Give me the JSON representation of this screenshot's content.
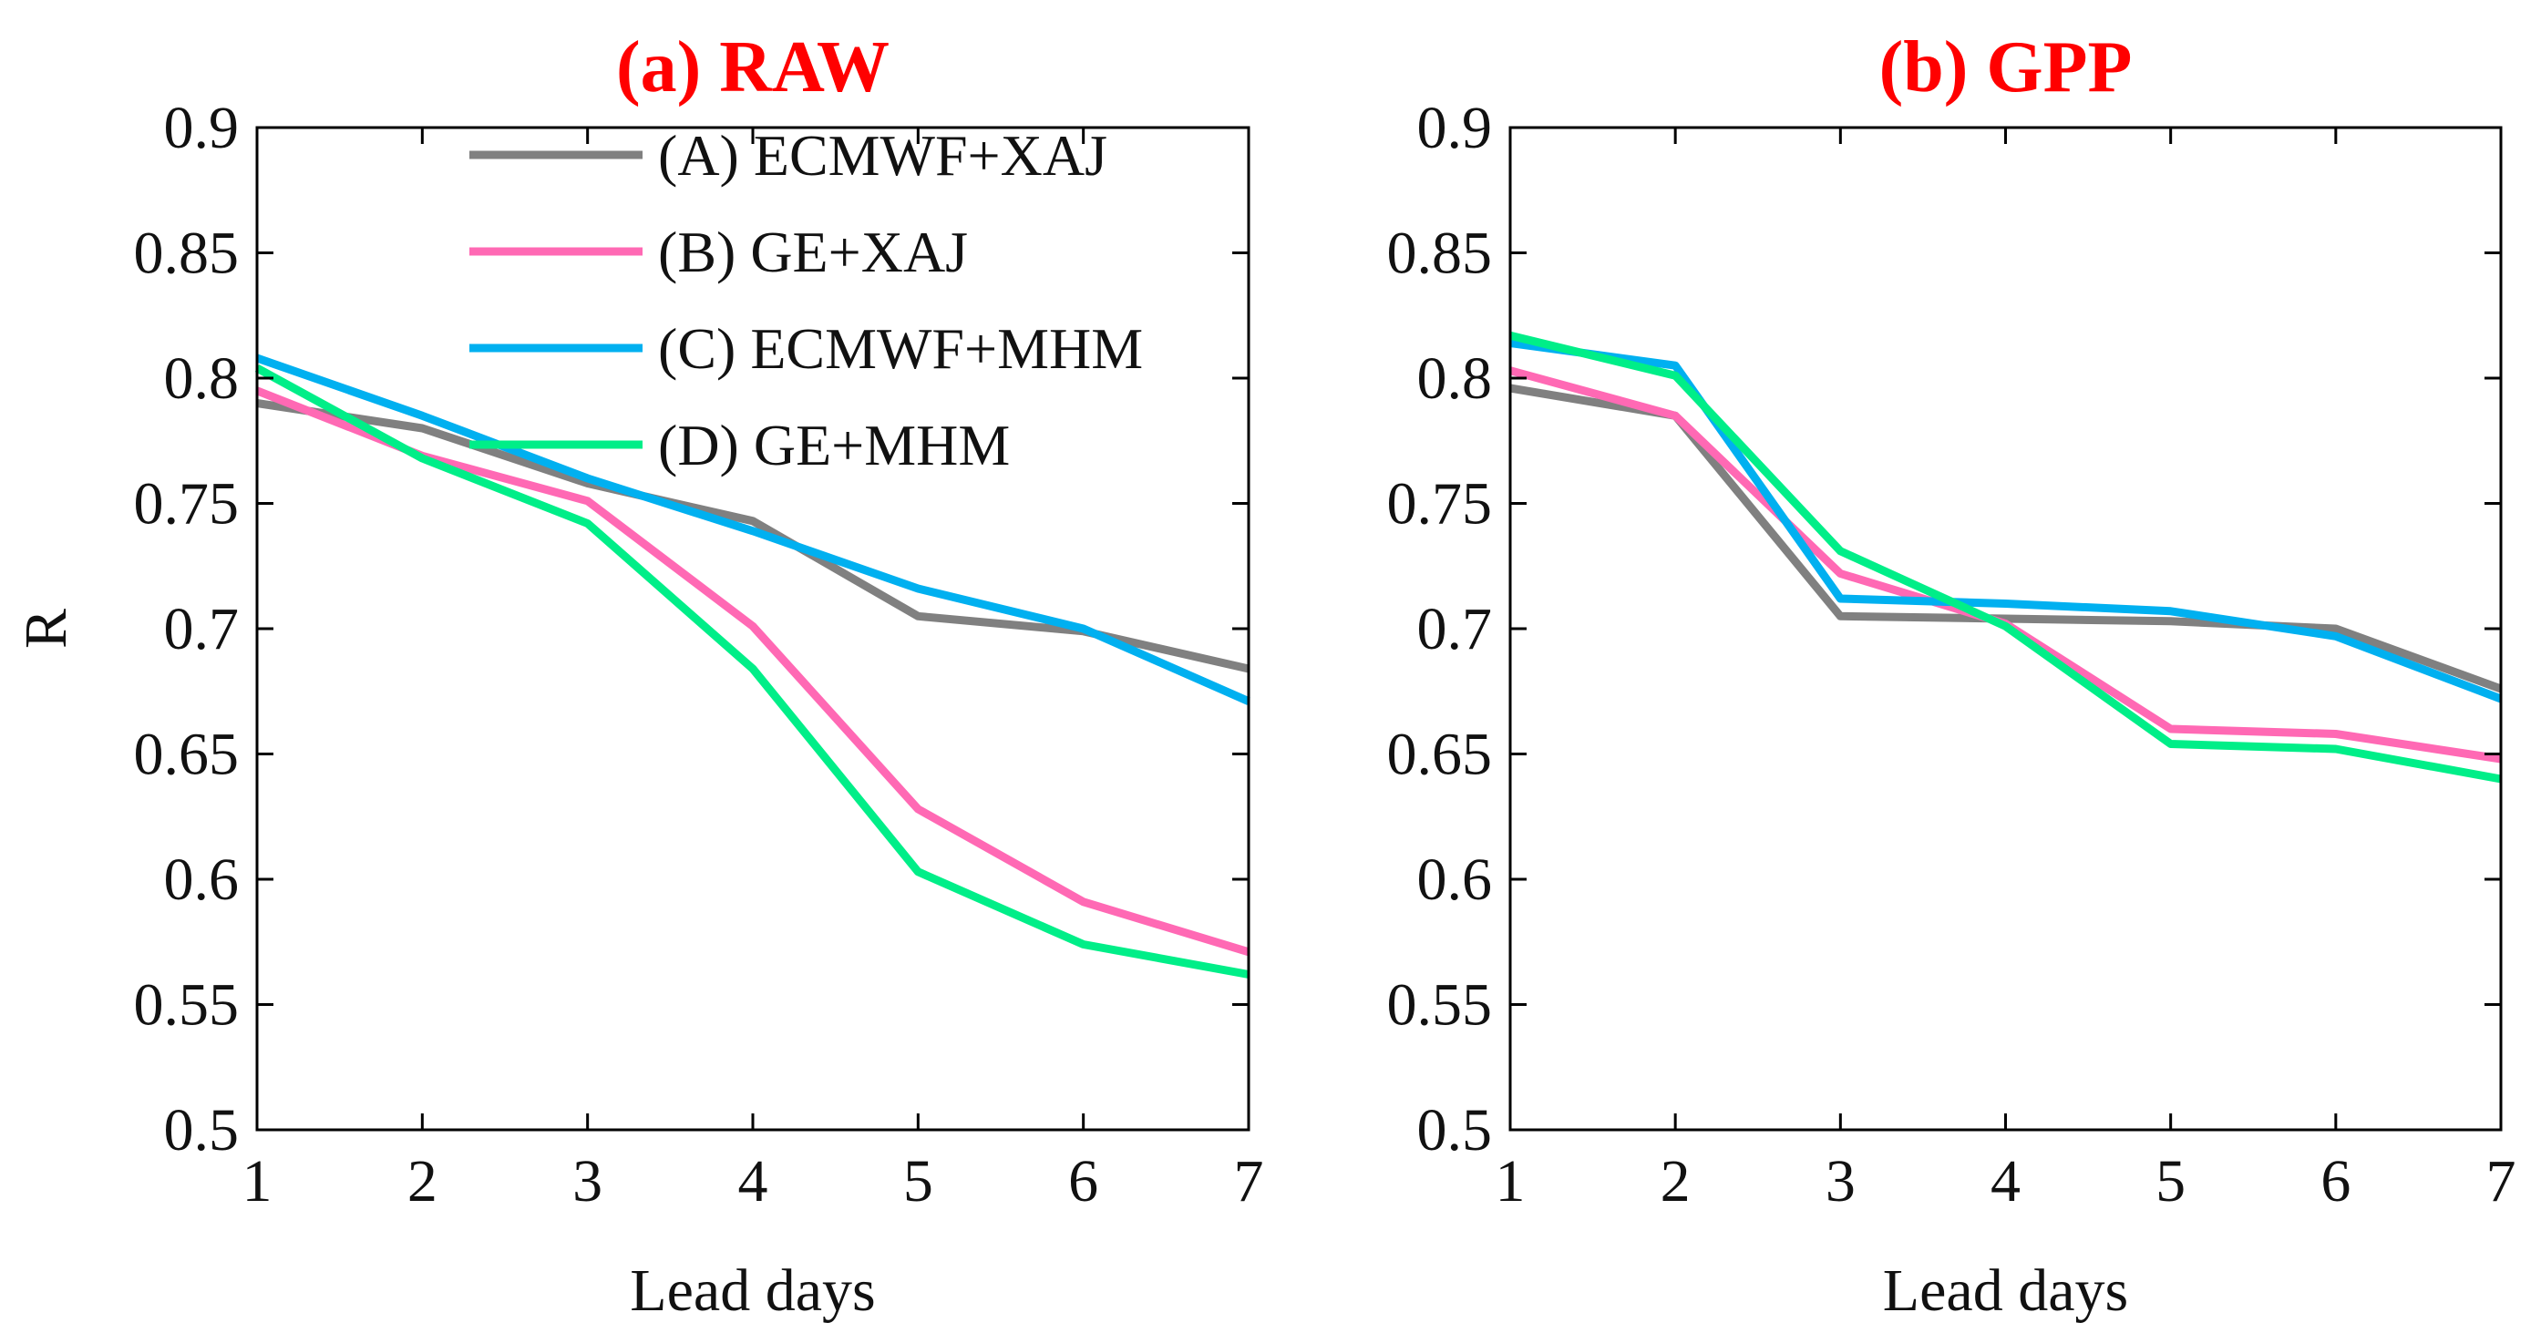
{
  "chart_data": [
    {
      "type": "line",
      "title": "(a) RAW",
      "title_color": "#ff0000",
      "xlabel": "Lead days",
      "ylabel": "R",
      "x": [
        1,
        2,
        3,
        4,
        5,
        6,
        7
      ],
      "xlim": [
        1,
        7
      ],
      "ylim": [
        0.5,
        0.9
      ],
      "xticks": [
        "1",
        "2",
        "3",
        "4",
        "5",
        "6",
        "7"
      ],
      "yticks": [
        "0.5",
        "0.55",
        "0.6",
        "0.65",
        "0.7",
        "0.75",
        "0.8",
        "0.85",
        "0.9"
      ],
      "legend_position": "top-right",
      "grid": false,
      "series": [
        {
          "name": "(A) ECMWF+XAJ",
          "color": "#808080",
          "values": [
            0.79,
            0.78,
            0.758,
            0.743,
            0.705,
            0.699,
            0.684
          ]
        },
        {
          "name": "(B) GE+XAJ",
          "color": "#ff69b4",
          "values": [
            0.795,
            0.769,
            0.751,
            0.701,
            0.628,
            0.591,
            0.571
          ]
        },
        {
          "name": "(C) ECMWF+MHM",
          "color": "#00b0f0",
          "values": [
            0.808,
            0.785,
            0.76,
            0.739,
            0.716,
            0.7,
            0.671
          ]
        },
        {
          "name": "(D) GE+MHM",
          "color": "#00ee88",
          "values": [
            0.804,
            0.768,
            0.742,
            0.684,
            0.603,
            0.574,
            0.562
          ]
        }
      ]
    },
    {
      "type": "line",
      "title": "(b) GPP",
      "title_color": "#ff0000",
      "xlabel": "Lead days",
      "ylabel": "",
      "x": [
        1,
        2,
        3,
        4,
        5,
        6,
        7
      ],
      "xlim": [
        1,
        7
      ],
      "ylim": [
        0.5,
        0.9
      ],
      "xticks": [
        "1",
        "2",
        "3",
        "4",
        "5",
        "6",
        "7"
      ],
      "yticks": [
        "0.5",
        "0.55",
        "0.6",
        "0.65",
        "0.7",
        "0.75",
        "0.8",
        "0.85",
        "0.9"
      ],
      "grid": false,
      "series": [
        {
          "name": "(A) ECMWF+XAJ",
          "color": "#808080",
          "values": [
            0.796,
            0.785,
            0.705,
            0.704,
            0.703,
            0.7,
            0.676
          ]
        },
        {
          "name": "(B) GE+XAJ",
          "color": "#ff69b4",
          "values": [
            0.803,
            0.785,
            0.722,
            0.702,
            0.66,
            0.658,
            0.648
          ]
        },
        {
          "name": "(C) ECMWF+MHM",
          "color": "#00b0f0",
          "values": [
            0.814,
            0.805,
            0.712,
            0.71,
            0.707,
            0.697,
            0.672
          ]
        },
        {
          "name": "(D) GE+MHM",
          "color": "#00ee88",
          "values": [
            0.817,
            0.801,
            0.731,
            0.701,
            0.654,
            0.652,
            0.64
          ]
        }
      ]
    }
  ]
}
